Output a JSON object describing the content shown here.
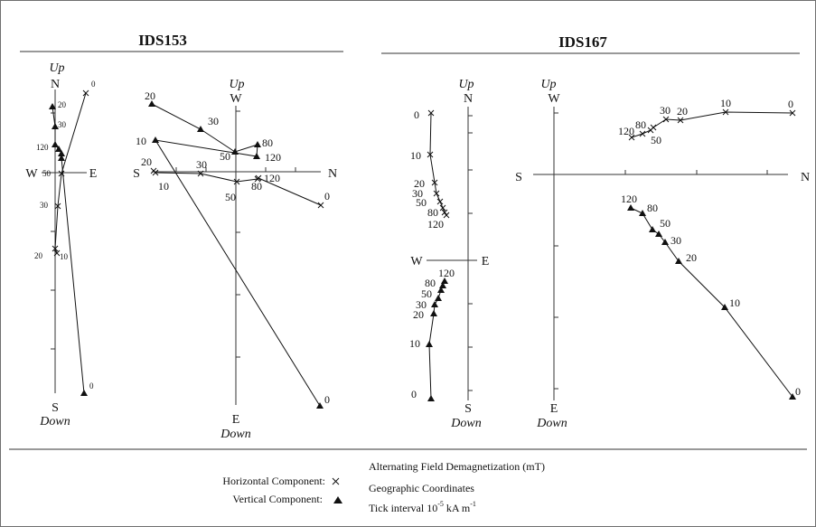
{
  "panels": [
    {
      "title": "IDS153",
      "plots": [
        {
          "id": "ids153-ns",
          "labels": {
            "top": "N",
            "bottom": "S",
            "left": "W",
            "right": "E",
            "up": "Up",
            "down": "Down"
          },
          "horizontal": [
            {
              "step": "0",
              "pos": [
                95,
                103
              ]
            },
            {
              "step": "50",
              "pos": [
                68,
                192
              ]
            },
            {
              "step": "30",
              "pos": [
                64,
                228
              ]
            },
            {
              "step": "20",
              "pos": [
                61,
                275
              ]
            },
            {
              "step": "10",
              "pos": [
                63,
                280
              ]
            }
          ],
          "vertical": [
            {
              "step": "20",
              "pos": [
                58,
                118
              ]
            },
            {
              "step": "30",
              "pos": [
                61,
                140
              ]
            },
            {
              "step": "120",
              "pos": [
                61,
                160
              ]
            },
            {
              "step": "",
              "pos": [
                65,
                165
              ]
            },
            {
              "step": "",
              "pos": [
                68,
                170
              ]
            },
            {
              "step": "",
              "pos": [
                68,
                175
              ]
            },
            {
              "step": "0",
              "pos": [
                93,
                435
              ]
            }
          ],
          "step_labels": [
            {
              "text": "0",
              "pos": [
                101,
                96
              ]
            },
            {
              "text": "20",
              "pos": [
                64,
                119
              ]
            },
            {
              "text": "30",
              "pos": [
                64,
                141
              ]
            },
            {
              "text": "120",
              "pos": [
                40,
                166
              ]
            },
            {
              "text": "50",
              "pos": [
                47,
                195
              ]
            },
            {
              "text": "30",
              "pos": [
                44,
                230
              ]
            },
            {
              "text": "20",
              "pos": [
                38,
                286
              ]
            },
            {
              "text": "10",
              "pos": [
                66,
                287
              ]
            },
            {
              "text": "0",
              "pos": [
                99,
                430
              ]
            }
          ]
        },
        {
          "id": "ids153-ew",
          "labels": {
            "top": "W",
            "bottom": "E",
            "left": "S",
            "right": "N",
            "up": "Up",
            "down": "Down"
          },
          "horizontal": [
            {
              "step": "20",
              "pos": [
                170,
                189
              ]
            },
            {
              "step": "10",
              "pos": [
                172,
                191
              ]
            },
            {
              "step": "30",
              "pos": [
                222,
                192
              ]
            },
            {
              "step": "50",
              "pos": [
                262,
                201
              ]
            },
            {
              "step": "80",
              "pos": [
                285,
                198
              ]
            },
            {
              "step": "120",
              "pos": [
                286,
                197
              ]
            },
            {
              "step": "0",
              "pos": [
                355,
                227
              ]
            }
          ],
          "vertical": [
            {
              "step": "20",
              "pos": [
                168,
                115
              ]
            },
            {
              "step": "30",
              "pos": [
                222,
                143
              ]
            },
            {
              "step": "50",
              "pos": [
                260,
                168
              ]
            },
            {
              "step": "80",
              "pos": [
                285,
                160
              ]
            },
            {
              "step": "120",
              "pos": [
                284,
                173
              ]
            },
            {
              "step": "10",
              "pos": [
                172,
                155
              ]
            },
            {
              "step": "0",
              "pos": [
                354,
                449
              ]
            }
          ],
          "step_labels": [
            {
              "text": "20",
              "pos": [
                160,
                110
              ]
            },
            {
              "text": "30",
              "pos": [
                230,
                138
              ]
            },
            {
              "text": "50",
              "pos": [
                243,
                177
              ]
            },
            {
              "text": "80",
              "pos": [
                290,
                162
              ]
            },
            {
              "text": "120",
              "pos": [
                293,
                178
              ]
            },
            {
              "text": "10",
              "pos": [
                150,
                160
              ]
            },
            {
              "text": "20",
              "pos": [
                156,
                183
              ]
            },
            {
              "text": "30",
              "pos": [
                217,
                186
              ]
            },
            {
              "text": "10",
              "pos": [
                175,
                210
              ]
            },
            {
              "text": "120",
              "pos": [
                292,
                201
              ]
            },
            {
              "text": "80",
              "pos": [
                278,
                210
              ]
            },
            {
              "text": "50",
              "pos": [
                249,
                222
              ]
            },
            {
              "text": "0",
              "pos": [
                359,
                221
              ]
            },
            {
              "text": "0",
              "pos": [
                359,
                446
              ]
            }
          ]
        }
      ]
    },
    {
      "title": "IDS167",
      "plots": [
        {
          "id": "ids167-ns",
          "labels": {
            "top": "N",
            "bottom": "S",
            "left": "W",
            "right": "E",
            "up": "Up",
            "down": "Down"
          },
          "horizontal": [
            {
              "step": "0",
              "pos": [
                477,
                125
              ]
            },
            {
              "step": "10",
              "pos": [
                476,
                171
              ]
            },
            {
              "step": "20",
              "pos": [
                481,
                202
              ]
            },
            {
              "step": "30",
              "pos": [
                483,
                214
              ]
            },
            {
              "step": "50",
              "pos": [
                487,
                223
              ]
            },
            {
              "step": "",
              "pos": [
                490,
                230
              ]
            },
            {
              "step": "80",
              "pos": [
                492,
                235
              ]
            },
            {
              "step": "120",
              "pos": [
                494,
                238
              ]
            }
          ],
          "vertical": [
            {
              "step": "120",
              "pos": [
                492,
                311
              ]
            },
            {
              "step": "",
              "pos": [
                490,
                316
              ]
            },
            {
              "step": "80",
              "pos": [
                488,
                321
              ]
            },
            {
              "step": "50",
              "pos": [
                485,
                330
              ]
            },
            {
              "step": "30",
              "pos": [
                481,
                337
              ]
            },
            {
              "step": "20",
              "pos": [
                480,
                347
              ]
            },
            {
              "step": "10",
              "pos": [
                475,
                381
              ]
            },
            {
              "step": "0",
              "pos": [
                477,
                441
              ]
            }
          ],
          "step_labels": [
            {
              "text": "0",
              "pos": [
                458,
                131
              ]
            },
            {
              "text": "10",
              "pos": [
                454,
                176
              ]
            },
            {
              "text": "20",
              "pos": [
                458,
                207
              ]
            },
            {
              "text": "30",
              "pos": [
                456,
                218
              ]
            },
            {
              "text": "50",
              "pos": [
                460,
                228
              ]
            },
            {
              "text": "80",
              "pos": [
                473,
                239
              ]
            },
            {
              "text": "120",
              "pos": [
                473,
                252
              ]
            },
            {
              "text": "120",
              "pos": [
                485,
                306
              ]
            },
            {
              "text": "80",
              "pos": [
                470,
                317
              ]
            },
            {
              "text": "50",
              "pos": [
                466,
                329
              ]
            },
            {
              "text": "30",
              "pos": [
                460,
                341
              ]
            },
            {
              "text": "20",
              "pos": [
                457,
                352
              ]
            },
            {
              "text": "10",
              "pos": [
                453,
                384
              ]
            },
            {
              "text": "0",
              "pos": [
                455,
                440
              ]
            }
          ]
        },
        {
          "id": "ids167-ew",
          "labels": {
            "top": "W",
            "bottom": "E",
            "left": "S",
            "right": "N",
            "up": "Up",
            "down": "Down"
          },
          "horizontal": [
            {
              "step": "0",
              "pos": [
                877,
                125
              ]
            },
            {
              "step": "10",
              "pos": [
                803,
                124
              ]
            },
            {
              "step": "20",
              "pos": [
                753,
                133
              ]
            },
            {
              "step": "30",
              "pos": [
                737,
                132
              ]
            },
            {
              "step": "",
              "pos": [
                723,
                141
              ]
            },
            {
              "step": "50",
              "pos": [
                720,
                144
              ]
            },
            {
              "step": "80",
              "pos": [
                711,
                148
              ]
            },
            {
              "step": "120",
              "pos": [
                699,
                152
              ]
            }
          ],
          "vertical": [
            {
              "step": "120",
              "pos": [
                698,
                230
              ]
            },
            {
              "step": "80",
              "pos": [
                711,
                236
              ]
            },
            {
              "step": "50",
              "pos": [
                722,
                254
              ]
            },
            {
              "step": "",
              "pos": [
                729,
                259
              ]
            },
            {
              "step": "30",
              "pos": [
                736,
                268
              ]
            },
            {
              "step": "20",
              "pos": [
                751,
                289
              ]
            },
            {
              "step": "10",
              "pos": [
                802,
                340
              ]
            },
            {
              "step": "0",
              "pos": [
                877,
                439
              ]
            }
          ],
          "step_labels": [
            {
              "text": "0",
              "pos": [
                872,
                119
              ]
            },
            {
              "text": "10",
              "pos": [
                797,
                118
              ]
            },
            {
              "text": "20",
              "pos": [
                749,
                127
              ]
            },
            {
              "text": "30",
              "pos": [
                730,
                126
              ]
            },
            {
              "text": "120",
              "pos": [
                684,
                149
              ]
            },
            {
              "text": "80",
              "pos": [
                703,
                142
              ]
            },
            {
              "text": "50",
              "pos": [
                720,
                159
              ]
            },
            {
              "text": "120",
              "pos": [
                687,
                224
              ]
            },
            {
              "text": "80",
              "pos": [
                716,
                234
              ]
            },
            {
              "text": "50",
              "pos": [
                730,
                251
              ]
            },
            {
              "text": "30",
              "pos": [
                742,
                270
              ]
            },
            {
              "text": "20",
              "pos": [
                759,
                289
              ]
            },
            {
              "text": "10",
              "pos": [
                807,
                339
              ]
            },
            {
              "text": "0",
              "pos": [
                880,
                437
              ]
            }
          ]
        }
      ]
    }
  ],
  "legend": {
    "horizontal_label": "Horizontal Component:",
    "vertical_label": "Vertical Component:",
    "horizontal_symbol": "cross-marker-icon",
    "vertical_symbol": "triangle-marker-icon",
    "demag": "Alternating Field Demagnetization (mT)",
    "coords": "Geographic Coordinates",
    "tick_prefix": "Tick interval 10",
    "tick_exp": "-5",
    "tick_unit": "kA m",
    "tick_unit_exp": "-1"
  }
}
